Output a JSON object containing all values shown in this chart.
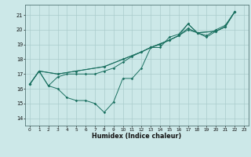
{
  "xlabel": "Humidex (Indice chaleur)",
  "xlim": [
    -0.5,
    23.5
  ],
  "ylim": [
    13.5,
    21.7
  ],
  "yticks": [
    14,
    15,
    16,
    17,
    18,
    19,
    20,
    21
  ],
  "xticks": [
    0,
    1,
    2,
    3,
    4,
    5,
    6,
    7,
    8,
    9,
    10,
    11,
    12,
    13,
    14,
    15,
    16,
    17,
    18,
    19,
    20,
    21,
    22,
    23
  ],
  "bg_color": "#cce8e8",
  "grid_color": "#aacccc",
  "line_color": "#1a7060",
  "line1": [
    [
      0,
      16.3
    ],
    [
      1,
      17.2
    ],
    [
      2,
      16.2
    ],
    [
      3,
      16.0
    ],
    [
      4,
      15.4
    ],
    [
      5,
      15.2
    ],
    [
      6,
      15.2
    ],
    [
      7,
      15.0
    ],
    [
      8,
      14.4
    ],
    [
      9,
      15.1
    ],
    [
      10,
      16.7
    ],
    [
      11,
      16.7
    ],
    [
      12,
      17.4
    ],
    [
      13,
      18.8
    ],
    [
      14,
      18.8
    ],
    [
      15,
      19.5
    ],
    [
      16,
      19.7
    ],
    [
      17,
      20.4
    ],
    [
      18,
      19.8
    ],
    [
      19,
      19.6
    ],
    [
      20,
      20.0
    ],
    [
      21,
      20.3
    ],
    [
      22,
      21.2
    ]
  ],
  "line2": [
    [
      0,
      16.3
    ],
    [
      1,
      17.2
    ],
    [
      2,
      16.2
    ],
    [
      3,
      16.8
    ],
    [
      4,
      17.0
    ],
    [
      5,
      17.0
    ],
    [
      6,
      17.0
    ],
    [
      7,
      17.0
    ],
    [
      8,
      17.2
    ],
    [
      9,
      17.4
    ],
    [
      10,
      17.8
    ],
    [
      11,
      18.2
    ],
    [
      12,
      18.5
    ],
    [
      13,
      18.8
    ],
    [
      14,
      19.0
    ],
    [
      15,
      19.3
    ],
    [
      16,
      19.6
    ],
    [
      17,
      20.0
    ],
    [
      18,
      19.8
    ],
    [
      19,
      19.5
    ],
    [
      20,
      19.9
    ],
    [
      21,
      20.2
    ],
    [
      22,
      21.2
    ]
  ],
  "line3": [
    [
      0,
      16.3
    ],
    [
      1,
      17.2
    ],
    [
      3,
      17.0
    ],
    [
      5,
      17.2
    ],
    [
      8,
      17.5
    ],
    [
      10,
      18.0
    ],
    [
      12,
      18.5
    ],
    [
      13,
      18.8
    ],
    [
      15,
      19.3
    ],
    [
      16,
      19.6
    ],
    [
      17,
      20.1
    ],
    [
      18,
      19.8
    ],
    [
      20,
      19.9
    ],
    [
      21,
      20.2
    ],
    [
      22,
      21.2
    ]
  ],
  "line4": [
    [
      0,
      16.3
    ],
    [
      1,
      17.2
    ],
    [
      3,
      17.0
    ],
    [
      5,
      17.2
    ],
    [
      8,
      17.5
    ],
    [
      10,
      18.0
    ],
    [
      12,
      18.5
    ],
    [
      13,
      18.8
    ],
    [
      15,
      19.3
    ],
    [
      16,
      19.6
    ],
    [
      17,
      20.4
    ],
    [
      18,
      19.8
    ],
    [
      20,
      19.9
    ],
    [
      21,
      20.2
    ],
    [
      22,
      21.2
    ]
  ]
}
